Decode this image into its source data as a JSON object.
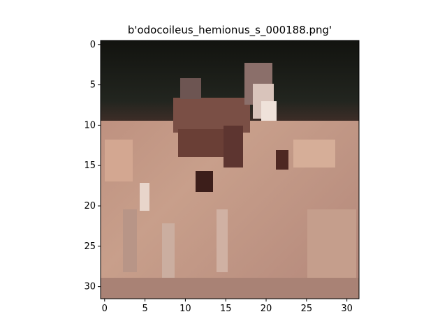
{
  "figure": {
    "title": "b'odocoileus_hemionus_s_000188.png'",
    "x_axis": {
      "ticks": [
        "0",
        "5",
        "10",
        "15",
        "20",
        "25",
        "30"
      ]
    },
    "y_axis": {
      "ticks": [
        "0",
        "5",
        "10",
        "15",
        "20",
        "25",
        "30"
      ]
    },
    "image_grid": {
      "rows": 32,
      "cols": 32
    }
  }
}
